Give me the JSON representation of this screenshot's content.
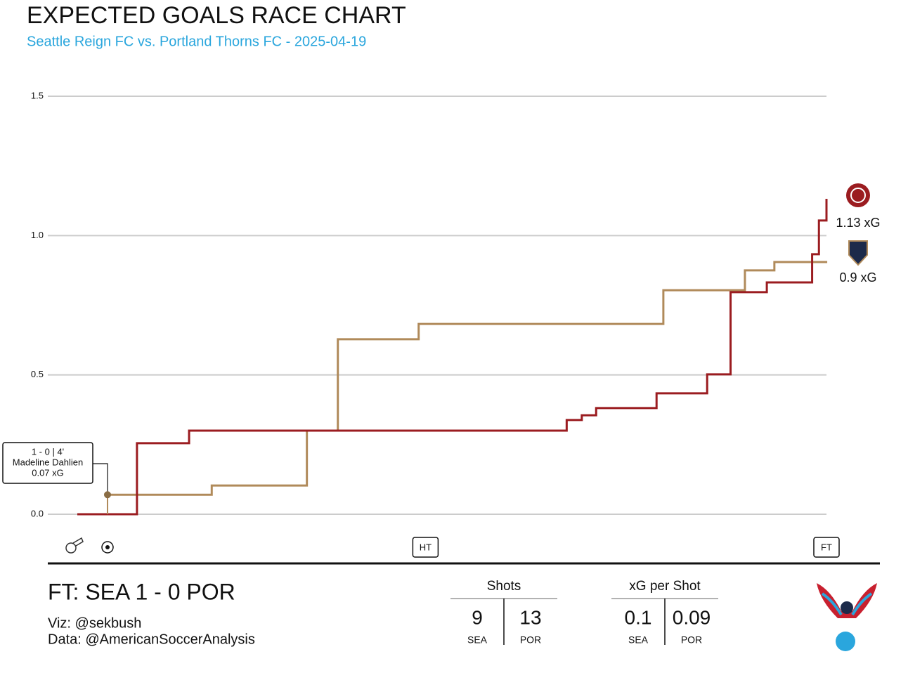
{
  "chart_data": {
    "type": "step",
    "title": "EXPECTED GOALS RACE CHART",
    "subtitle": "Seattle Reign FC vs. Portland Thorns FC - 2025-04-19",
    "xlim": [
      0,
      99.2
    ],
    "ylim": [
      0,
      1.5
    ],
    "yticks": [
      {
        "value": 0,
        "label": "0.0"
      },
      0.5,
      {
        "value": 1,
        "label": "1.0"
      },
      1.5
    ],
    "grid": true,
    "series": [
      {
        "name": "Seattle Reign FC",
        "color": "#b08a5a",
        "x": [
          4,
          17.8,
          30.4,
          34.5,
          45.2,
          77.6,
          88.4,
          92.3,
          99.3
        ],
        "values": [
          0.07,
          0.103,
          0.3,
          0.628,
          0.683,
          0.804,
          0.875,
          0.905,
          0.905
        ],
        "end_label": "0.9 xG"
      },
      {
        "name": "Portland Thorns FC",
        "color": "#9b1c20",
        "x": [
          0,
          7.9,
          14.8,
          64.8,
          66.8,
          68.7,
          76.7,
          83.4,
          86.5,
          91.3,
          97.3,
          98.2,
          99.2
        ],
        "values": [
          0,
          0.255,
          0.3,
          0.338,
          0.355,
          0.381,
          0.434,
          0.502,
          0.797,
          0.832,
          0.933,
          1.054,
          1.132
        ],
        "end_label": "1.13 xG"
      }
    ],
    "goals": [
      {
        "x": 4,
        "y": 0.07,
        "score": "1 - 0  |  4'",
        "player": "Madeline Dahlien",
        "xg": "0.07 xG"
      }
    ],
    "markers": [
      {
        "label": "HT",
        "x": 46.1
      },
      {
        "label": "FT",
        "x": 99.2
      }
    ]
  },
  "footer": {
    "result": "FT:  SEA 1  - 0 POR",
    "viz": "Viz: @sekbush",
    "source": "Data: @AmericanSoccerAnalysis",
    "stats": [
      {
        "title": "Shots",
        "home": "9",
        "away": "13",
        "home_team": "SEA",
        "away_team": "POR"
      },
      {
        "title": "xG per Shot",
        "home": "0.1",
        "away": "0.09",
        "home_team": "SEA",
        "away_team": "POR"
      }
    ]
  }
}
